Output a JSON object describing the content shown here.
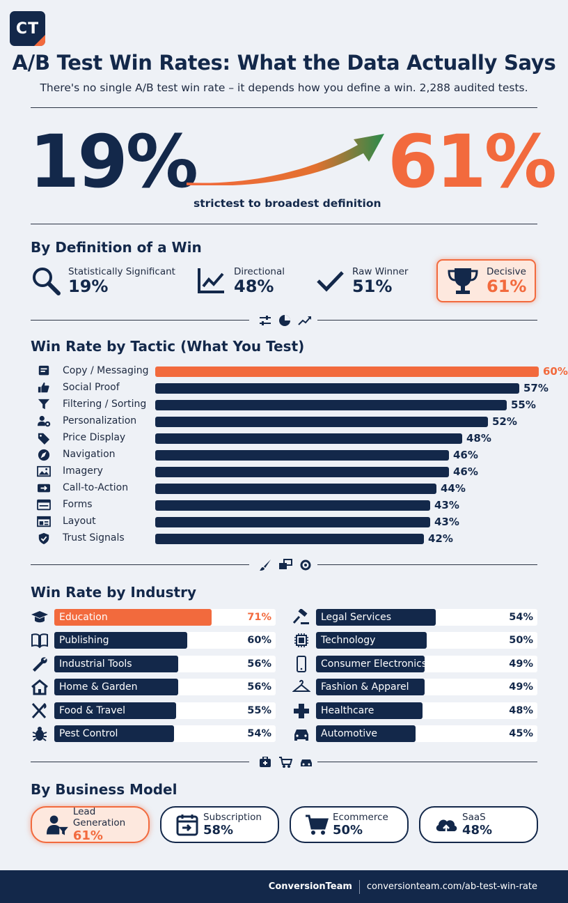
{
  "logo": "CT",
  "title": "A/B Test Win Rates: What the Data Actually Says",
  "subtitle": "There's no single A/B test win rate – it depends how you define a win. 2,288 audited tests.",
  "hero": {
    "low": "19%",
    "high": "61%",
    "caption": "strictest to broadest definition",
    "low_color": "#13284a",
    "high_color": "#f26a3d"
  },
  "definition_section": {
    "heading": "By Definition of a Win",
    "items": [
      {
        "label": "Statistically Significant",
        "value": "19%",
        "icon": "search-icon"
      },
      {
        "label": "Directional",
        "value": "48%",
        "icon": "trend-chart-icon"
      },
      {
        "label": "Raw Winner",
        "value": "51%",
        "icon": "checkmark-icon"
      },
      {
        "label": "Decisive",
        "value": "61%",
        "icon": "trophy-icon",
        "highlight": true
      }
    ]
  },
  "chart_data": [
    {
      "type": "bar",
      "title": "Win Rate by Tactic (What You Test)",
      "orientation": "horizontal",
      "unit": "%",
      "categories": [
        "Copy / Messaging",
        "Social Proof",
        "Filtering / Sorting",
        "Personalization",
        "Price Display",
        "Navigation",
        "Imagery",
        "Call-to-Action",
        "Forms",
        "Layout",
        "Trust Signals"
      ],
      "values": [
        60,
        57,
        55,
        52,
        48,
        46,
        46,
        44,
        43,
        43,
        42
      ],
      "labels": [
        "60%",
        "57%",
        "55%",
        "52%",
        "48%",
        "46%",
        "46%",
        "44%",
        "43%",
        "43%",
        "42%"
      ],
      "icons": [
        "chat-icon",
        "thumbs-up-icon",
        "filter-icon",
        "user-gear-icon",
        "price-tag-icon",
        "compass-icon",
        "image-icon",
        "cta-arrow-icon",
        "form-icon",
        "layout-icon",
        "shield-icon"
      ],
      "highlight_index": 0,
      "colors": {
        "bar": "#13284a",
        "highlight": "#f26a3d"
      }
    },
    {
      "type": "bar",
      "title": "Win Rate by Industry",
      "orientation": "horizontal",
      "unit": "%",
      "categories": [
        "Education",
        "Publishing",
        "Industrial Tools",
        "Home & Garden",
        "Food & Travel",
        "Pest Control",
        "Legal Services",
        "Technology",
        "Consumer Electronics",
        "Fashion & Apparel",
        "Healthcare",
        "Automotive"
      ],
      "values": [
        71,
        60,
        56,
        56,
        55,
        54,
        54,
        50,
        49,
        49,
        48,
        45
      ],
      "labels": [
        "71%",
        "60%",
        "56%",
        "56%",
        "55%",
        "54%",
        "54%",
        "50%",
        "49%",
        "49%",
        "48%",
        "45%"
      ],
      "icons": [
        "graduation-cap-icon",
        "book-icon",
        "wrench-icon",
        "house-icon",
        "fork-knife-icon",
        "bug-icon",
        "gavel-icon",
        "chip-icon",
        "phone-icon",
        "hanger-icon",
        "medical-cross-icon",
        "car-icon"
      ],
      "highlight_index": 0,
      "colors": {
        "bar": "#13284a",
        "highlight": "#f26a3d"
      }
    }
  ],
  "business_model": {
    "heading": "By Business Model",
    "items": [
      {
        "label": "Lead Generation",
        "value": "61%",
        "icon": "lead-funnel-icon",
        "highlight": true
      },
      {
        "label": "Subscription",
        "value": "58%",
        "icon": "calendar-icon"
      },
      {
        "label": "Ecommerce",
        "value": "50%",
        "icon": "cart-icon"
      },
      {
        "label": "SaaS",
        "value": "48%",
        "icon": "cloud-upload-icon"
      }
    ]
  },
  "footer": {
    "brand": "ConversionTeam",
    "url": "conversionteam.com/ab-test-win-rate"
  }
}
